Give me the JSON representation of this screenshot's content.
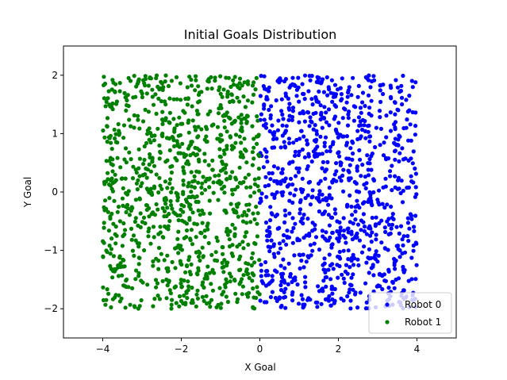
{
  "chart_data": {
    "type": "scatter",
    "title": "Initial Goals Distribution",
    "xlabel": "X Goal",
    "ylabel": "Y Goal",
    "xlim": [
      -5,
      5
    ],
    "ylim": [
      -2.5,
      2.5
    ],
    "xticks": [
      -4,
      -2,
      0,
      2,
      4
    ],
    "yticks": [
      -2,
      -1,
      0,
      1,
      2
    ],
    "xtick_labels": [
      "−4",
      "−2",
      "0",
      "2",
      "4"
    ],
    "ytick_labels": [
      "−2",
      "−1",
      "0",
      "1",
      "2"
    ],
    "grid": false,
    "legend_position": "lower-right",
    "series": [
      {
        "name": "Robot 0",
        "color": "#0000ff",
        "marker": "circle",
        "count": 1000,
        "distribution": "uniform",
        "x_range": [
          0,
          4
        ],
        "y_range": [
          -2,
          2
        ]
      },
      {
        "name": "Robot 1",
        "color": "#008000",
        "marker": "circle",
        "count": 1000,
        "distribution": "uniform",
        "x_range": [
          -4,
          0
        ],
        "y_range": [
          -2,
          2
        ]
      }
    ]
  }
}
